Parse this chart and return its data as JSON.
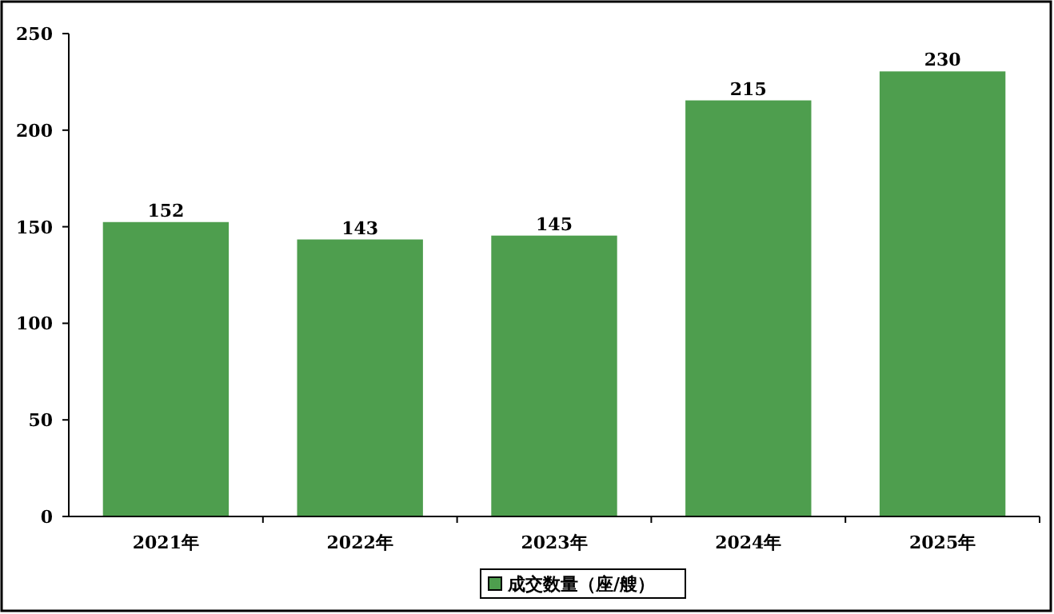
{
  "chart_data": {
    "type": "bar",
    "categories": [
      "2021年",
      "2022年",
      "2023年",
      "2024年",
      "2025年"
    ],
    "series": [
      {
        "name": "成交数量（座/艘）",
        "color": "#4e9e4e",
        "values": [
          152,
          143,
          145,
          215,
          230
        ]
      }
    ],
    "ylim": [
      0,
      250
    ],
    "yticks": [
      0,
      50,
      100,
      150,
      200,
      250
    ],
    "data_labels": true,
    "legend": "bottom",
    "grid": false
  }
}
